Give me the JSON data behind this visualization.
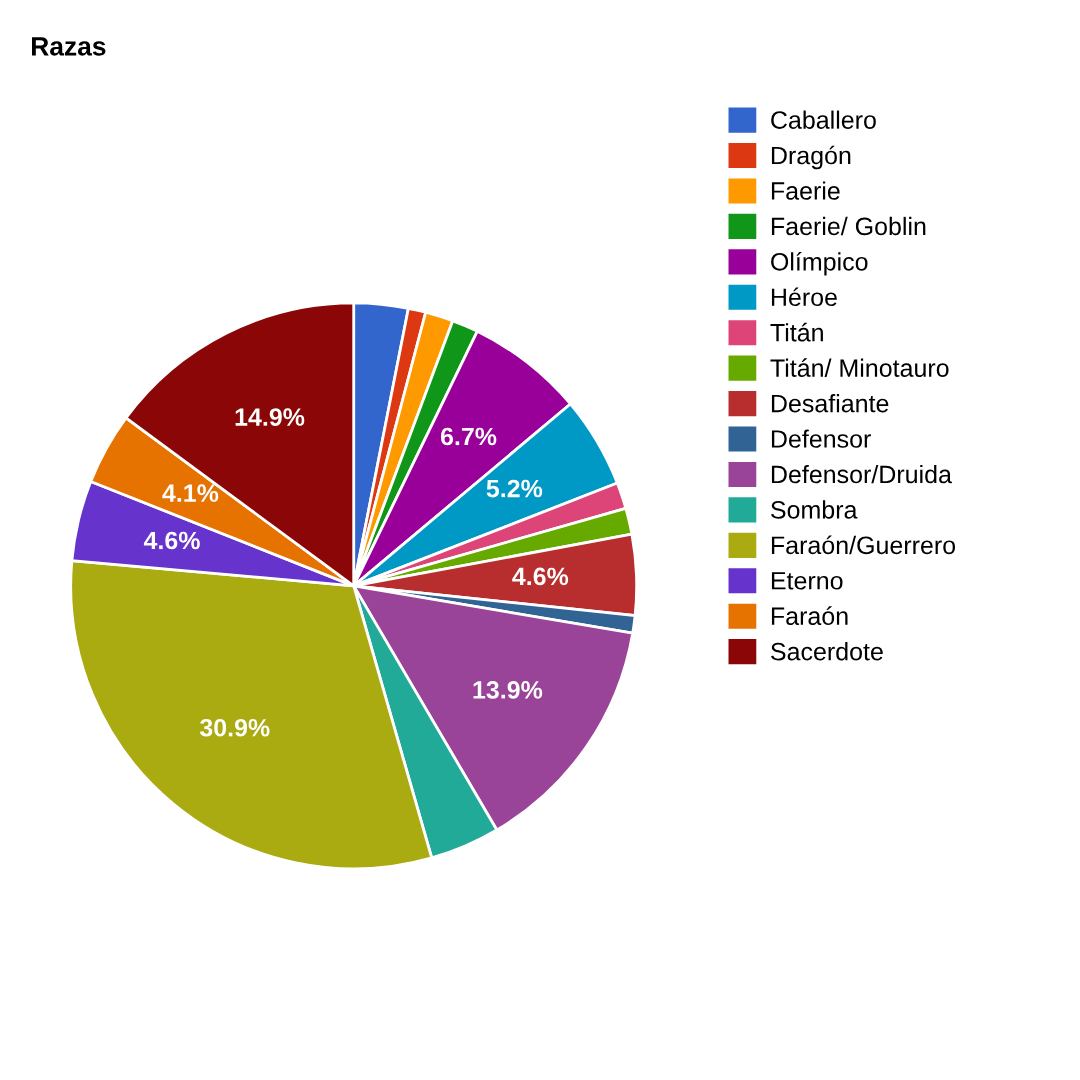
{
  "chart_data": {
    "type": "pie",
    "title": "Razas",
    "categories": [
      "Caballero",
      "Dragón",
      "Faerie",
      "Faerie/ Goblin",
      "Olímpico",
      "Héroe",
      "Titán",
      "Titán/ Minotauro",
      "Desafiante",
      "Defensor",
      "Defensor/Druida",
      "Sombra",
      "Faraón/Guerrero",
      "Eterno",
      "Faraón",
      "Sacerdote"
    ],
    "values": [
      3.1,
      1.0,
      1.6,
      1.5,
      6.7,
      5.2,
      1.5,
      1.5,
      4.6,
      1.0,
      13.9,
      4.0,
      30.9,
      4.6,
      4.1,
      14.9
    ],
    "value_labels": [
      null,
      null,
      null,
      null,
      "6.7%",
      "5.2%",
      null,
      null,
      "4.6%",
      null,
      "13.9%",
      null,
      "30.9%",
      "4.6%",
      "4.1%",
      "14.9%"
    ],
    "colors": [
      "#3366cc",
      "#dc3912",
      "#ff9900",
      "#109618",
      "#990099",
      "#0099c6",
      "#dd4477",
      "#66aa00",
      "#b82e2e",
      "#316395",
      "#994499",
      "#22aa99",
      "#aaaa11",
      "#6633cc",
      "#e67300",
      "#8b0707"
    ],
    "legend": "right"
  }
}
